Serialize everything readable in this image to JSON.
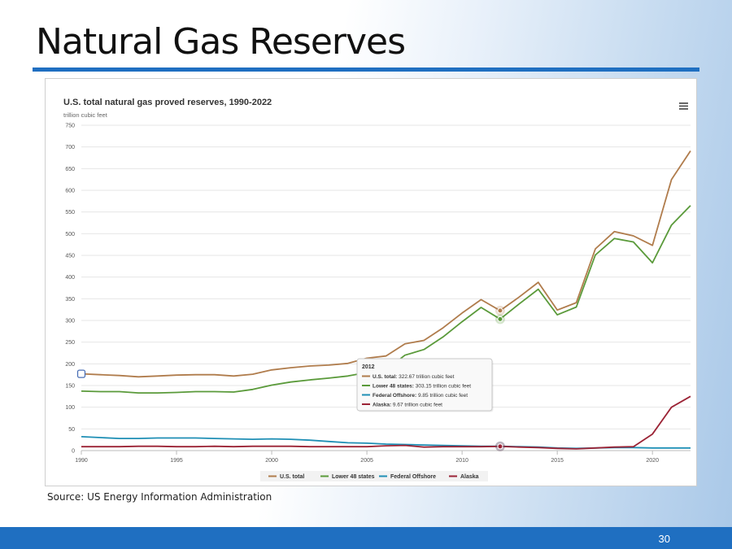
{
  "slide": {
    "title": "Natural Gas Reserves",
    "source": "Source: US Energy Information Administration",
    "page_number": "30"
  },
  "colors": {
    "us_total": "#b07c4c",
    "lower48": "#5a9a3a",
    "offshore": "#1f8fb5",
    "alaska": "#9b2335",
    "accent": "#1f6fc1"
  },
  "chart_data": {
    "type": "line",
    "title": "U.S. total natural gas proved reserves, 1990-2022",
    "ylabel": "trillion cubic feet",
    "xlabel": "",
    "xlim": [
      1990,
      2022
    ],
    "ylim": [
      0,
      750
    ],
    "yticks": [
      0,
      50,
      100,
      150,
      200,
      250,
      300,
      350,
      400,
      450,
      500,
      550,
      600,
      650,
      700,
      750
    ],
    "xticks": [
      1990,
      1995,
      2000,
      2005,
      2010,
      2015,
      2020
    ],
    "menu_icon": "hamburger-menu-icon",
    "x": [
      1990,
      1991,
      1992,
      1993,
      1994,
      1995,
      1996,
      1997,
      1998,
      1999,
      2000,
      2001,
      2002,
      2003,
      2004,
      2005,
      2006,
      2007,
      2008,
      2009,
      2010,
      2011,
      2012,
      2013,
      2014,
      2015,
      2016,
      2017,
      2018,
      2019,
      2020,
      2021,
      2022
    ],
    "series": [
      {
        "name": "U.S. total",
        "color_key": "us_total",
        "values": [
          177,
          175,
          173,
          170,
          172,
          174,
          175,
          175,
          172,
          176,
          186,
          191,
          195,
          197,
          201,
          213,
          218,
          246,
          254,
          283,
          317,
          348,
          322.67,
          354,
          388,
          324,
          341,
          465,
          505,
          495,
          473,
          625,
          691
        ]
      },
      {
        "name": "Lower 48 states",
        "color_key": "lower48",
        "values": [
          137,
          136,
          136,
          133,
          133,
          134,
          136,
          136,
          135,
          141,
          151,
          158,
          163,
          167,
          172,
          180,
          186,
          220,
          233,
          262,
          297,
          330,
          303.15,
          338,
          372,
          313,
          331,
          451,
          489,
          481,
          433,
          520,
          565
        ]
      },
      {
        "name": "Federal Offshore",
        "color_key": "offshore",
        "values": [
          32,
          30,
          28,
          28,
          29,
          29,
          29,
          28,
          27,
          26,
          27,
          26,
          24,
          21,
          18,
          17,
          15,
          14,
          13,
          12,
          11,
          10,
          9.85,
          9,
          8,
          6,
          5,
          6,
          7,
          7,
          6,
          6,
          6
        ]
      },
      {
        "name": "Alaska",
        "color_key": "alaska",
        "values": [
          9,
          9,
          9,
          10,
          10,
          9,
          9,
          10,
          9,
          10,
          10,
          10,
          9,
          9,
          9,
          9,
          11,
          12,
          8,
          9,
          9,
          9,
          9.67,
          8,
          7,
          5,
          4,
          6,
          8,
          9,
          38,
          100,
          125
        ]
      }
    ],
    "tooltip": {
      "year": "2012",
      "rows": [
        {
          "label": "U.S. total:",
          "value": "322.67 trillion cubic feet",
          "color_key": "us_total"
        },
        {
          "label": "Lower 48 states:",
          "value": "303.15 trillion cubic feet",
          "color_key": "lower48"
        },
        {
          "label": "Federal Offshore:",
          "value": "9.85 trillion cubic feet",
          "color_key": "offshore"
        },
        {
          "label": "Alaska:",
          "value": "9.67 trillion cubic feet",
          "color_key": "alaska"
        }
      ]
    },
    "legend": {
      "position": "bottom-center",
      "items": [
        "U.S. total",
        "Lower 48 states",
        "Federal Offshore",
        "Alaska"
      ]
    }
  }
}
